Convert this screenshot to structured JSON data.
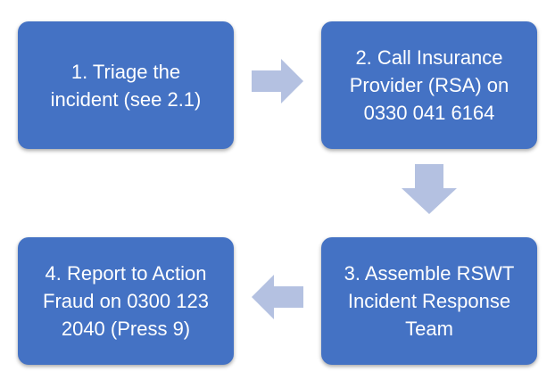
{
  "steps": [
    {
      "label": "1. Triage the\nincident (see 2.1)"
    },
    {
      "label": "2. Call Insurance\nProvider (RSA) on\n0330 041 6164"
    },
    {
      "label": "3. Assemble RSWT\nIncident Response\nTeam"
    },
    {
      "label": "4. Report to Action\nFraud on 0300 123\n2040 (Press 9)"
    }
  ],
  "colors": {
    "box_fill": "#4472c4",
    "arrow_fill": "#b4c1e1",
    "text": "#ffffff"
  },
  "connectors": [
    {
      "from": 1,
      "to": 2,
      "direction": "right"
    },
    {
      "from": 2,
      "to": 3,
      "direction": "down"
    },
    {
      "from": 3,
      "to": 4,
      "direction": "left"
    }
  ]
}
